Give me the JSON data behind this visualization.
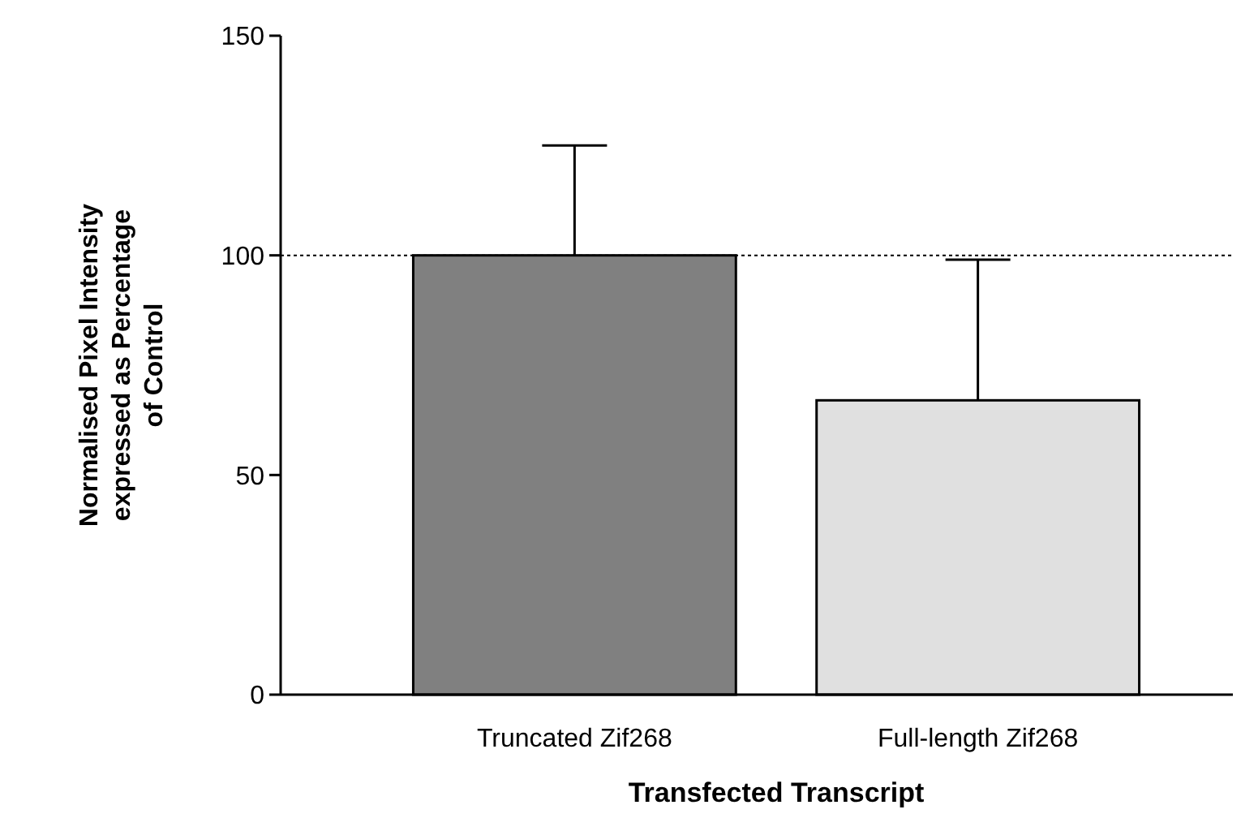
{
  "chart_data": {
    "type": "bar",
    "xlabel": "Transfected Transcript",
    "ylabel": "Normalised Pixel Intensity\nexpressed as Percentage\nof Control",
    "categories": [
      "Truncated Zif268",
      "Full-length Zif268"
    ],
    "values": [
      100,
      67
    ],
    "colors": [
      "#808080",
      "#e0e0e0"
    ],
    "errors": [
      25,
      32
    ],
    "ylim": [
      0,
      150
    ],
    "yticks": [
      0,
      50,
      100,
      150
    ],
    "grid": false,
    "ref_lines": [
      {
        "axis": "y",
        "value": 100,
        "line_style": "dotted",
        "color": "#000000"
      }
    ]
  }
}
